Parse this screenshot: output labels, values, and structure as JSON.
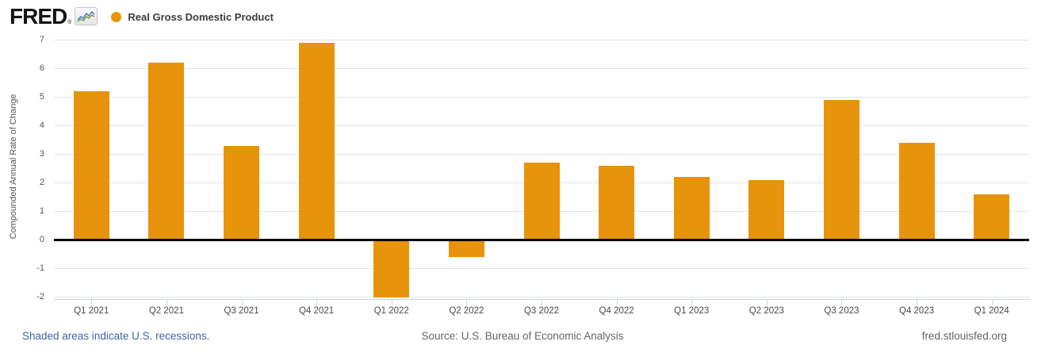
{
  "header": {
    "logo_text": "FRED",
    "registered_mark": "®",
    "legend_label": "Real Gross Domestic Product"
  },
  "chart_data": {
    "type": "bar",
    "title": "Real Gross Domestic Product",
    "series_name": "Real Gross Domestic Product",
    "categories": [
      "Q1 2021",
      "Q2 2021",
      "Q3 2021",
      "Q4 2021",
      "Q1 2022",
      "Q2 2022",
      "Q3 2022",
      "Q4 2022",
      "Q1 2023",
      "Q2 2023",
      "Q3 2023",
      "Q4 2023",
      "Q1 2024"
    ],
    "values": [
      5.2,
      6.2,
      3.3,
      6.9,
      -2.0,
      -0.6,
      2.7,
      2.6,
      2.2,
      2.1,
      4.9,
      3.4,
      1.6
    ],
    "xlabel": "",
    "ylabel": "Compounded Annual Rate of Change",
    "y_ticks": [
      7,
      6,
      5,
      4,
      3,
      2,
      1,
      0,
      -1,
      -2
    ],
    "ylim": [
      -2.1,
      7.2
    ],
    "grid": true,
    "legend_position": "top-left",
    "zero_baseline": true
  },
  "colors": {
    "bar": "#e8930c",
    "legend_dot": "#e8930c",
    "gridline": "#e3e3e3",
    "zero_line": "#000000",
    "axis_line": "#c9d3e4",
    "axis_text": "#555555",
    "link_blue": "#3f65a6",
    "footer_gray": "#666666",
    "logo_black": "#151515"
  },
  "footer": {
    "recessions_note": "Shaded areas indicate U.S. recessions.",
    "source": "Source: U.S. Bureau of Economic Analysis",
    "site": "fred.stlouisfed.org"
  }
}
